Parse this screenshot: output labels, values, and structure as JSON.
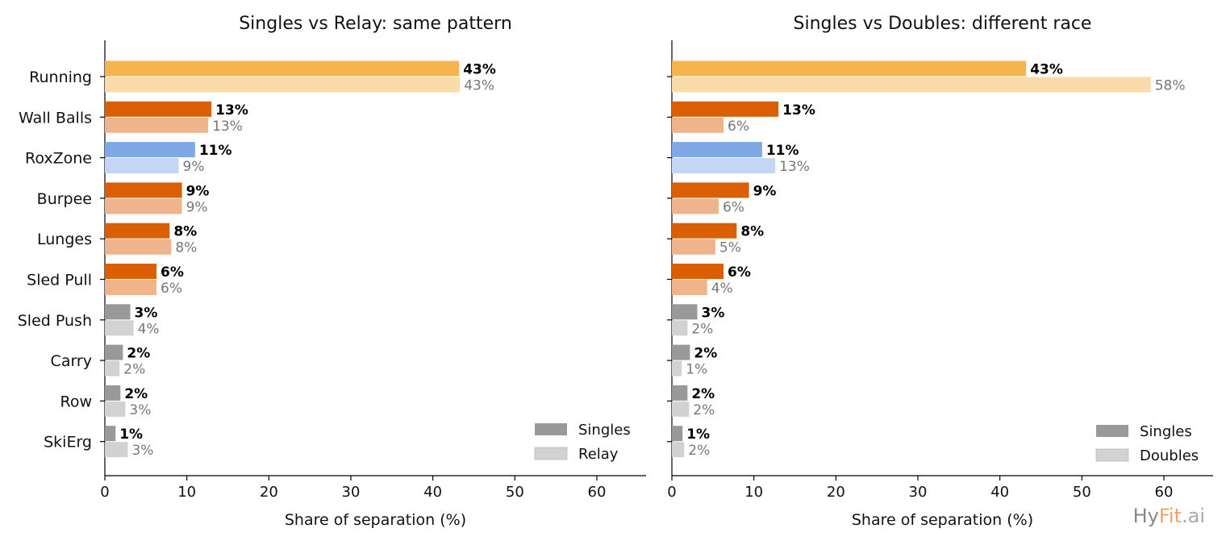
{
  "colors": {
    "running_a": "#f5b44e",
    "running_b": "#fadcab",
    "station_a": "#d95f02",
    "station_b": "#efb48c",
    "roxzone_a": "#7ea8e6",
    "roxzone_b": "#c3d6f3",
    "other_a": "#999999",
    "other_b": "#d2d2d2",
    "legend_a": "#999999",
    "legend_b": "#d2d2d2"
  },
  "brand": {
    "hy": "Hy",
    "fit": "Fit",
    "ai": ".ai"
  },
  "chart_data": [
    {
      "type": "bar",
      "orientation": "horizontal",
      "title": "Singles vs Relay: same pattern",
      "xlabel": "Share of separation (%)",
      "ylabel": "",
      "xlim": [
        0,
        66
      ],
      "xticks": [
        0,
        10,
        20,
        30,
        40,
        50,
        60
      ],
      "grid": false,
      "legend_position": "bottom-right",
      "categories": [
        "Running",
        "Wall Balls",
        "RoxZone",
        "Burpee",
        "Lunges",
        "Sled Pull",
        "Sled Push",
        "Carry",
        "Row",
        "SkiErg"
      ],
      "category_groups": [
        "running",
        "station",
        "roxzone",
        "station",
        "station",
        "station",
        "other",
        "other",
        "other",
        "other"
      ],
      "series": [
        {
          "name": "Singles",
          "values": [
            43.2,
            13.0,
            11.0,
            9.4,
            7.9,
            6.3,
            3.1,
            2.2,
            1.9,
            1.3
          ],
          "labels": [
            "43%",
            "13%",
            "11%",
            "9%",
            "8%",
            "6%",
            "3%",
            "2%",
            "2%",
            "1%"
          ]
        },
        {
          "name": "Relay",
          "values": [
            43.3,
            12.6,
            9.0,
            9.4,
            8.1,
            6.3,
            3.5,
            1.8,
            2.5,
            2.8
          ],
          "labels": [
            "43%",
            "13%",
            "9%",
            "9%",
            "8%",
            "6%",
            "4%",
            "2%",
            "3%",
            "3%"
          ]
        }
      ]
    },
    {
      "type": "bar",
      "orientation": "horizontal",
      "title": "Singles vs Doubles: different race",
      "xlabel": "Share of separation (%)",
      "ylabel": "",
      "xlim": [
        0,
        66
      ],
      "xticks": [
        0,
        10,
        20,
        30,
        40,
        50,
        60
      ],
      "grid": false,
      "legend_position": "bottom-right",
      "categories": [
        "Running",
        "Wall Balls",
        "RoxZone",
        "Burpee",
        "Lunges",
        "Sled Pull",
        "Sled Push",
        "Carry",
        "Row",
        "SkiErg"
      ],
      "category_groups": [
        "running",
        "station",
        "roxzone",
        "station",
        "station",
        "station",
        "other",
        "other",
        "other",
        "other"
      ],
      "series": [
        {
          "name": "Singles",
          "values": [
            43.2,
            13.0,
            11.0,
            9.4,
            7.9,
            6.3,
            3.1,
            2.2,
            1.9,
            1.3
          ],
          "labels": [
            "43%",
            "13%",
            "11%",
            "9%",
            "8%",
            "6%",
            "3%",
            "2%",
            "2%",
            "1%"
          ]
        },
        {
          "name": "Doubles",
          "values": [
            58.4,
            6.3,
            12.6,
            5.7,
            5.3,
            4.3,
            1.9,
            1.2,
            2.1,
            1.5
          ],
          "labels": [
            "58%",
            "6%",
            "13%",
            "6%",
            "5%",
            "4%",
            "2%",
            "1%",
            "2%",
            "2%"
          ]
        }
      ]
    }
  ]
}
